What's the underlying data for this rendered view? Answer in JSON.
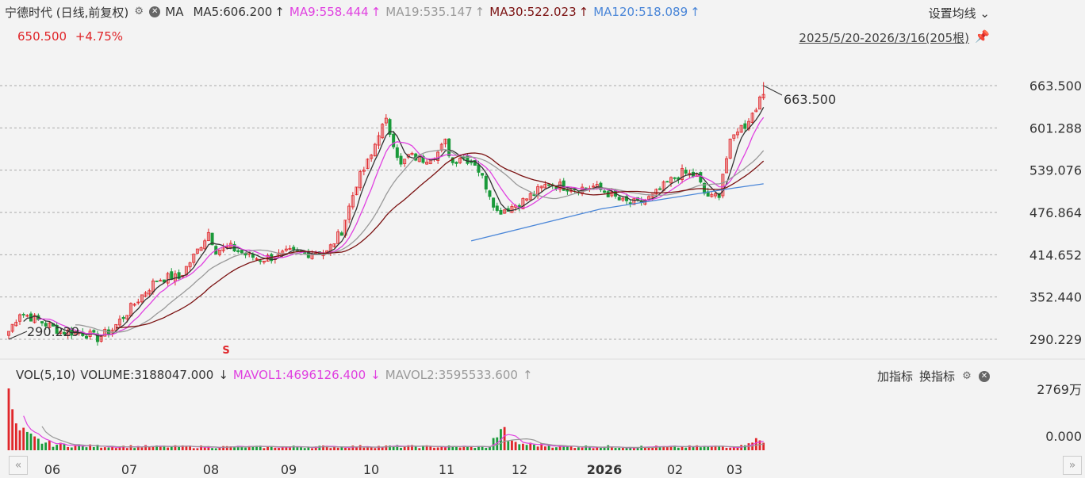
{
  "header": {
    "title": "宁德时代 (日线,前复权)",
    "ma_label": "MA",
    "ma_items": [
      {
        "label": "MA5:606.200",
        "color": "#333333",
        "arrow": "↑"
      },
      {
        "label": "MA9:558.444",
        "color": "#e040e0",
        "arrow": "↑"
      },
      {
        "label": "MA19:535.147",
        "color": "#999999",
        "arrow": "↑"
      },
      {
        "label": "MA30:522.023",
        "color": "#7a1010",
        "arrow": "↑"
      },
      {
        "label": "MA120:518.089",
        "color": "#4a86d8",
        "arrow": "↑"
      }
    ],
    "settings_label": "设置均线",
    "last_price": "650.500",
    "change_pct": "+4.75%",
    "range_label": "2025/5/20-2026/3/16(205根)"
  },
  "volume_header": {
    "vol_label": "VOL(5,10)",
    "volume": "VOLUME:3188047.000",
    "volume_arrow": "↓",
    "mavol1": "MAVOL1:4696126.400",
    "mavol1_arrow": "↓",
    "mavol2": "MAVOL2:3595533.600",
    "mavol2_arrow": "↑",
    "add_indicator": "加指标",
    "switch_indicator": "换指标"
  },
  "colors": {
    "up": "#e0262a",
    "down": "#1a9a3a",
    "ma5": "#333333",
    "ma9": "#e040e0",
    "ma19": "#999999",
    "ma30": "#7a1010",
    "ma120": "#4a86d8"
  },
  "chart_data": {
    "type": "candlestick",
    "price_ticks": [
      "663.500",
      "601.288",
      "539.076",
      "476.864",
      "414.652",
      "352.440",
      "290.229"
    ],
    "ylim": [
      290.229,
      663.5
    ],
    "volume_ticks": [
      "2769万",
      "0.000"
    ],
    "x_ticks": [
      "06",
      "07",
      "08",
      "09",
      "10",
      "11",
      "12",
      "2026",
      "02",
      "03"
    ],
    "annotations": {
      "high_label": "663.500",
      "low_label": "290.229",
      "signal": "S"
    },
    "price_path": [
      [
        0,
        302
      ],
      [
        3,
        330
      ],
      [
        8,
        318
      ],
      [
        14,
        302
      ],
      [
        20,
        300
      ],
      [
        24,
        292
      ],
      [
        28,
        305
      ],
      [
        32,
        330
      ],
      [
        36,
        355
      ],
      [
        40,
        378
      ],
      [
        44,
        382
      ],
      [
        46,
        380
      ],
      [
        50,
        412
      ],
      [
        54,
        448
      ],
      [
        56,
        422
      ],
      [
        60,
        425
      ],
      [
        64,
        415
      ],
      [
        68,
        408
      ],
      [
        72,
        412
      ],
      [
        76,
        418
      ],
      [
        80,
        416
      ],
      [
        84,
        420
      ],
      [
        86,
        418
      ],
      [
        90,
        450
      ],
      [
        94,
        520
      ],
      [
        98,
        560
      ],
      [
        100,
        595
      ],
      [
        102,
        610
      ],
      [
        104,
        580
      ],
      [
        106,
        545
      ],
      [
        108,
        560
      ],
      [
        112,
        555
      ],
      [
        116,
        565
      ],
      [
        118,
        580
      ],
      [
        120,
        550
      ],
      [
        122,
        560
      ],
      [
        126,
        550
      ],
      [
        130,
        505
      ],
      [
        132,
        478
      ],
      [
        134,
        482
      ],
      [
        138,
        490
      ],
      [
        142,
        505
      ],
      [
        146,
        520
      ],
      [
        150,
        515
      ],
      [
        154,
        512
      ],
      [
        158,
        515
      ],
      [
        162,
        505
      ],
      [
        166,
        492
      ],
      [
        170,
        490
      ],
      [
        174,
        500
      ],
      [
        178,
        520
      ],
      [
        182,
        535
      ],
      [
        186,
        530
      ],
      [
        188,
        505
      ],
      [
        190,
        498
      ],
      [
        192,
        505
      ],
      [
        193,
        535
      ],
      [
        195,
        578
      ],
      [
        197,
        600
      ],
      [
        199,
        605
      ],
      [
        200,
        615
      ],
      [
        202,
        630
      ],
      [
        204,
        663.5
      ]
    ],
    "volume_profile": [
      [
        0,
        2769
      ],
      [
        2,
        900
      ],
      [
        5,
        600
      ],
      [
        8,
        400
      ],
      [
        12,
        250
      ],
      [
        20,
        180
      ],
      [
        40,
        150
      ],
      [
        70,
        140
      ],
      [
        100,
        160
      ],
      [
        130,
        150
      ],
      [
        133,
        950
      ],
      [
        136,
        300
      ],
      [
        150,
        160
      ],
      [
        180,
        140
      ],
      [
        198,
        170
      ],
      [
        200,
        450
      ],
      [
        202,
        420
      ],
      [
        204,
        320
      ]
    ],
    "ma120_line": [
      [
        125,
        435
      ],
      [
        160,
        482
      ],
      [
        195,
        512
      ],
      [
        204,
        519
      ]
    ]
  }
}
